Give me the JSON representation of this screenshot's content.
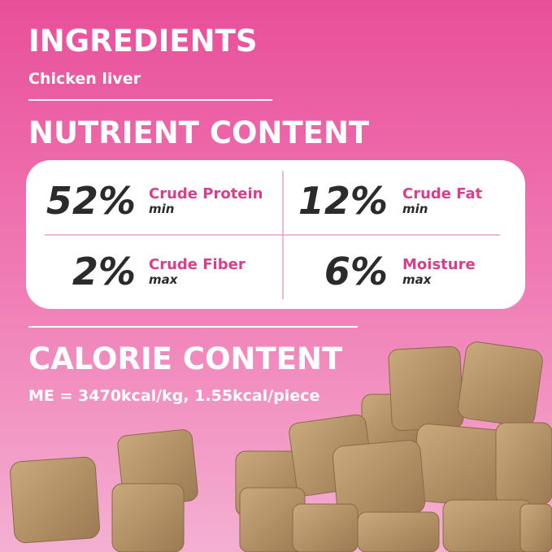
{
  "ingredients": {
    "title": "INGREDIENTS",
    "text": "Chicken liver"
  },
  "nutrients": {
    "title": "NUTRIENT CONTENT",
    "items": [
      {
        "value": "52%",
        "name": "Crude Protein",
        "qualifier": "min"
      },
      {
        "value": "12%",
        "name": "Crude Fat",
        "qualifier": "min"
      },
      {
        "value": "2%",
        "name": "Crude Fiber",
        "qualifier": "max"
      },
      {
        "value": "6%",
        "name": "Moisture",
        "qualifier": "max"
      }
    ]
  },
  "calories": {
    "title": "CALORIE CONTENT",
    "text": "ME = 3470kcal/kg, 1.55kcal/piece"
  }
}
